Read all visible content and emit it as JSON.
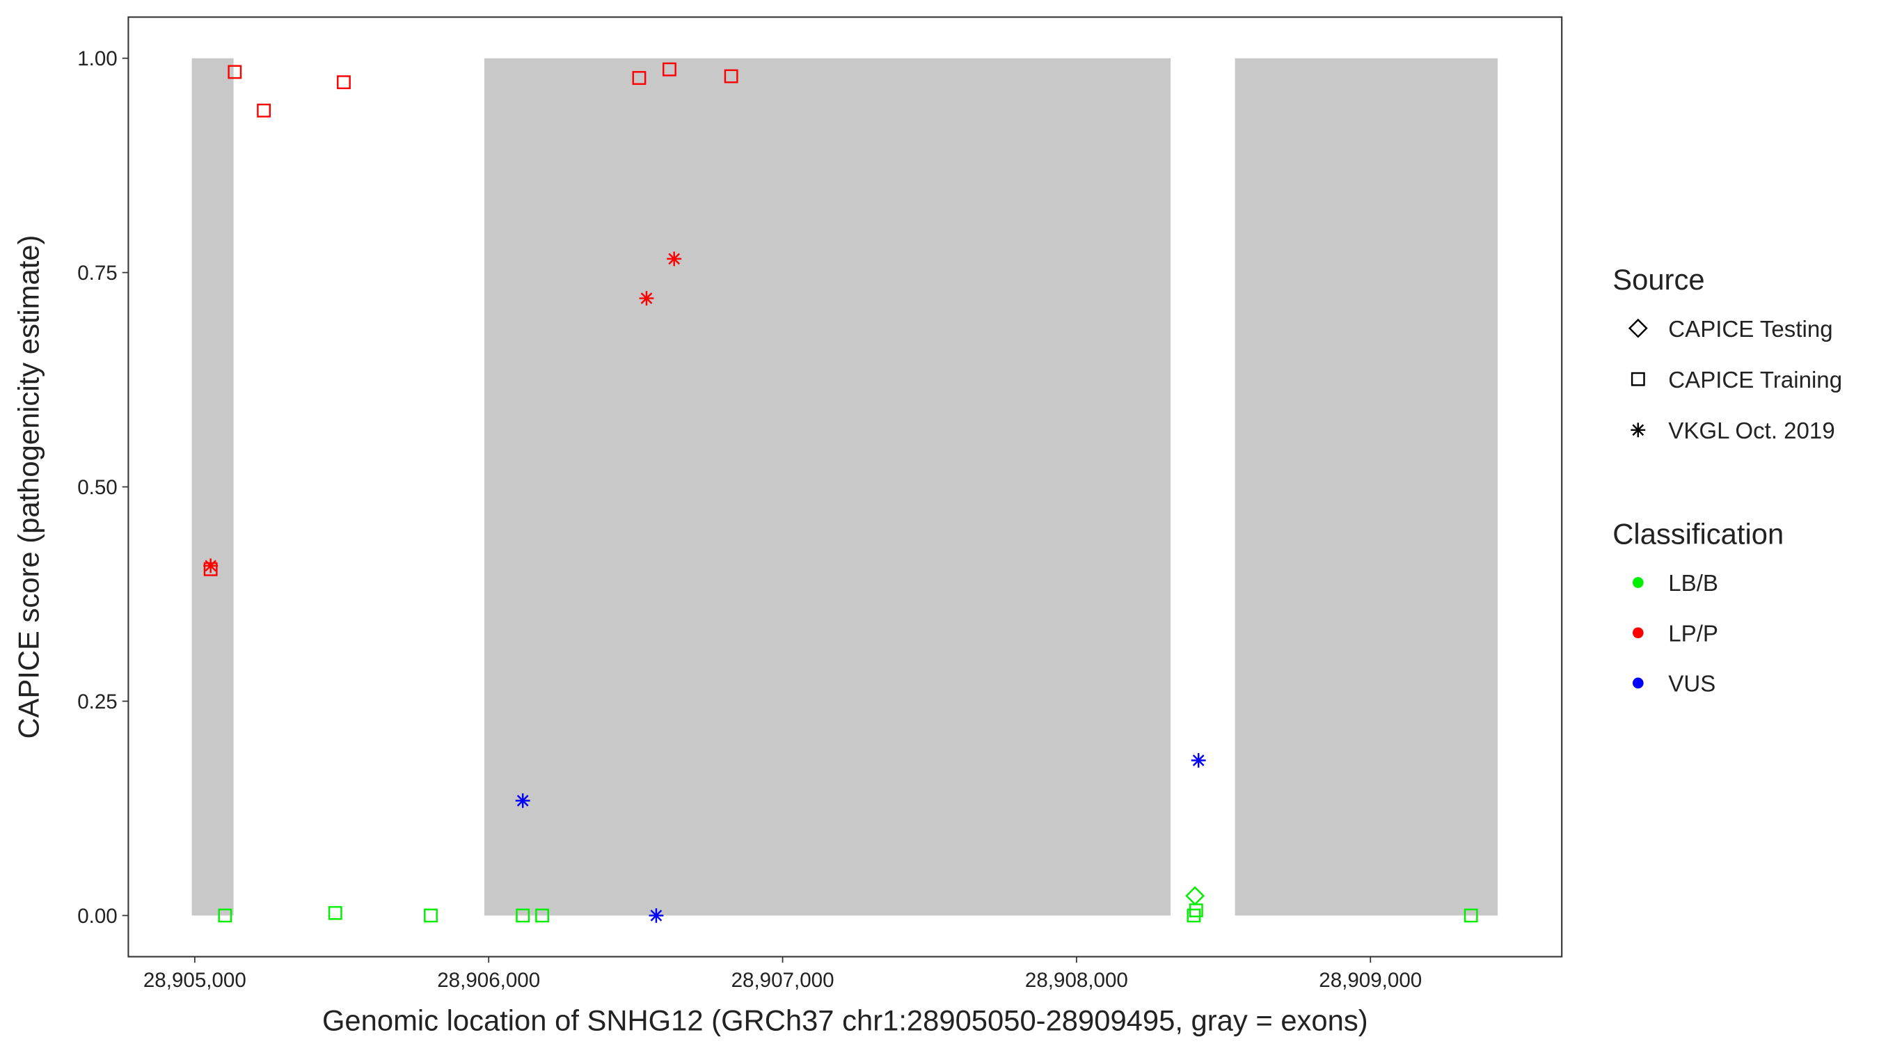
{
  "chart_data": {
    "type": "scatter",
    "x_label": "Genomic location of SNHG12 (GRCh37 chr1:28905050-28909495, gray = exons)",
    "y_label": "CAPICE score (pathogenicity estimate)",
    "xlim": [
      28904774,
      28909651
    ],
    "ylim": [
      -0.048,
      1.048
    ],
    "xticks": [
      {
        "value": 28905000,
        "label": "28,905,000"
      },
      {
        "value": 28906000,
        "label": "28,906,000"
      },
      {
        "value": 28907000,
        "label": "28,907,000"
      },
      {
        "value": 28908000,
        "label": "28,908,000"
      },
      {
        "value": 28909000,
        "label": "28,909,000"
      }
    ],
    "yticks": [
      {
        "value": 0,
        "label": "0.00"
      },
      {
        "value": 0.25,
        "label": "0.25"
      },
      {
        "value": 0.5,
        "label": "0.50"
      },
      {
        "value": 0.75,
        "label": "0.75"
      },
      {
        "value": 1,
        "label": "1.00"
      }
    ],
    "exons": [
      [
        28904990,
        28905132
      ],
      [
        28905985,
        28908320
      ],
      [
        28908539,
        28909433
      ]
    ],
    "exon_y": [
      0,
      1
    ],
    "exon_color": "#c8c8c8",
    "legends": {
      "source": {
        "title": "Source",
        "items": [
          {
            "label": "CAPICE Testing",
            "shape": "diamond"
          },
          {
            "label": "CAPICE Training",
            "shape": "square"
          },
          {
            "label": "VKGL Oct. 2019",
            "shape": "star"
          }
        ]
      },
      "classification": {
        "title": "Classification",
        "items": [
          {
            "label": "LB/B",
            "color": "#00ee00"
          },
          {
            "label": "LP/P",
            "color": "#ff0000"
          },
          {
            "label": "VUS",
            "color": "#0000ff"
          }
        ]
      }
    },
    "series": [
      {
        "source": 1,
        "classification": 1,
        "x": [
          28905136,
          28905235,
          28905507,
          28906512,
          28906615,
          28906825,
          28905054
        ],
        "y": [
          0.984,
          0.939,
          0.972,
          0.977,
          0.987,
          0.979,
          0.404
        ]
      },
      {
        "source": 1,
        "classification": 0,
        "x": [
          28905103,
          28905478,
          28905803,
          28906116,
          28906182,
          28908399,
          28908407,
          28909342
        ],
        "y": [
          0,
          0.003,
          0,
          0,
          0,
          0,
          0.006,
          0
        ]
      },
      {
        "source": 0,
        "classification": 0,
        "x": [
          28908403
        ],
        "y": [
          0.023
        ]
      },
      {
        "source": 2,
        "classification": 1,
        "x": [
          28905054,
          28906537,
          28906631
        ],
        "y": [
          0.408,
          0.72,
          0.766
        ]
      },
      {
        "source": 2,
        "classification": 2,
        "x": [
          28906116,
          28908415,
          28906570
        ],
        "y": [
          0.134,
          0.181,
          0
        ]
      }
    ]
  }
}
